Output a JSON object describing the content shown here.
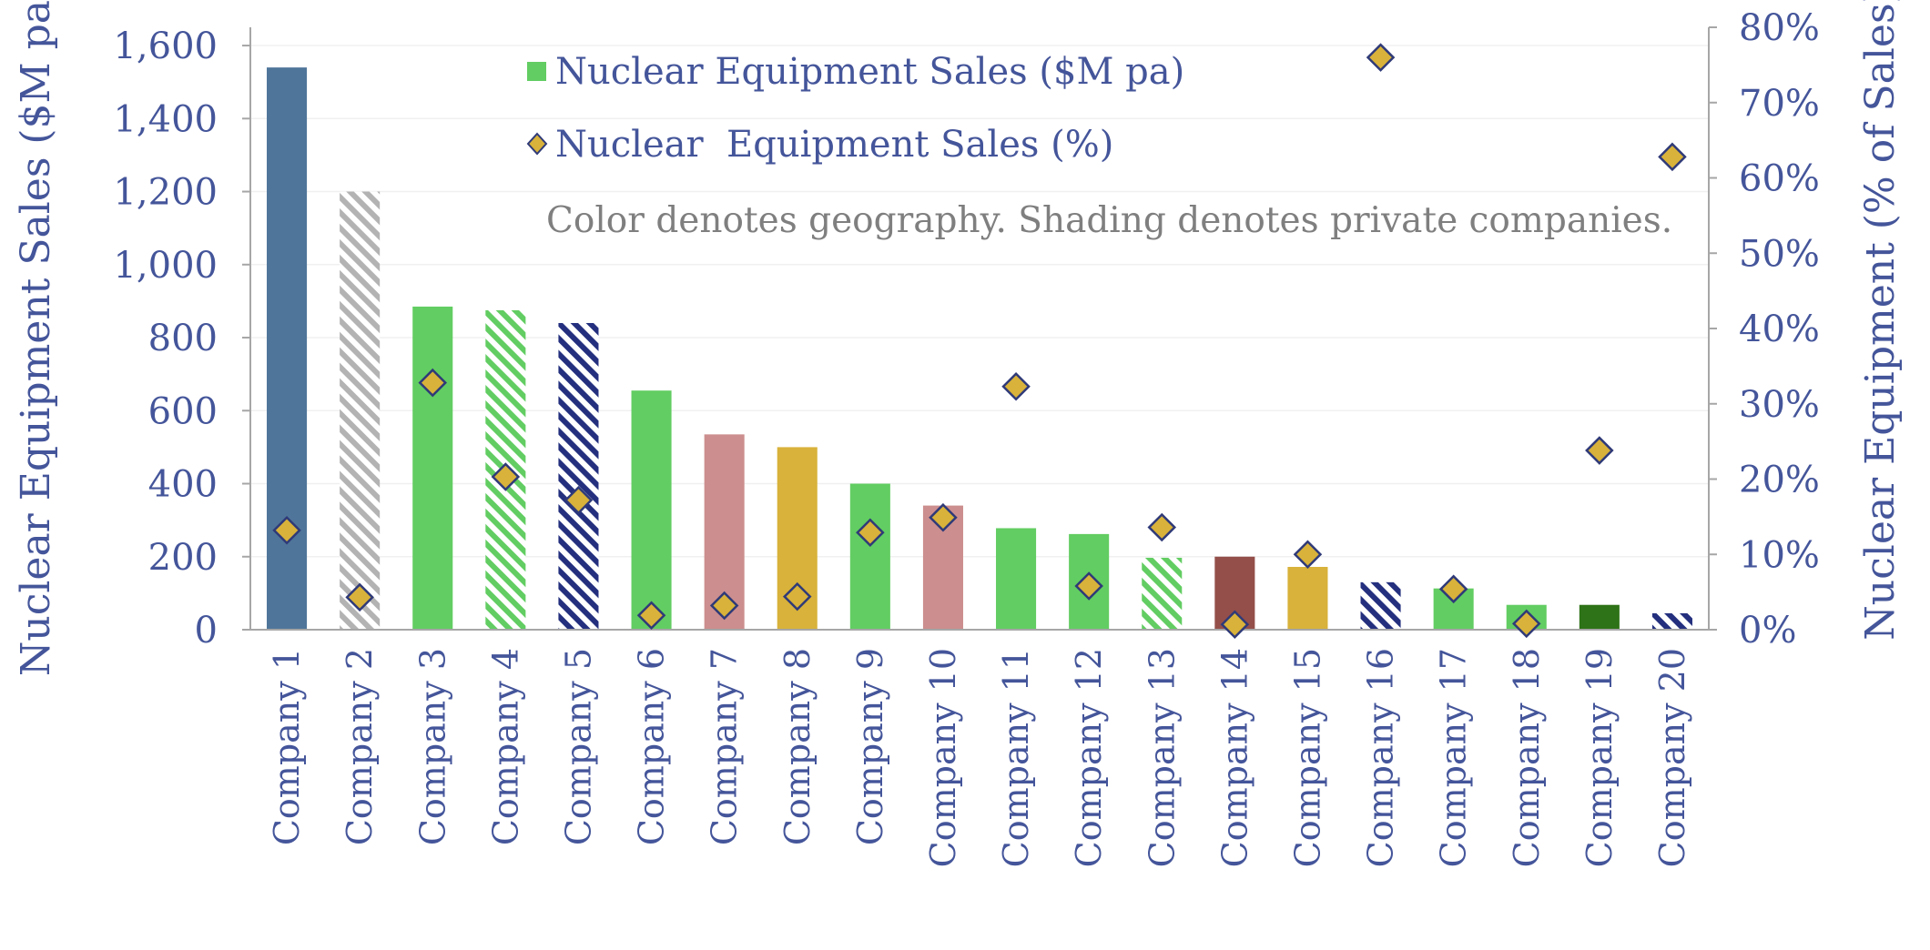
{
  "chart_data": {
    "type": "bar",
    "y_left": {
      "label": "Nuclear Equipment Sales ($M pa)",
      "range": [
        0,
        1650
      ],
      "ticks": [
        0,
        200,
        400,
        600,
        800,
        1000,
        1200,
        1400,
        1600
      ],
      "tick_labels": [
        "0",
        "200",
        "400",
        "600",
        "800",
        "1,000",
        "1,200",
        "1,400",
        "1,600"
      ]
    },
    "y_right": {
      "label": "Nuclear Equipment (% of Sales)",
      "range": [
        0,
        80
      ],
      "ticks": [
        0,
        10,
        20,
        30,
        40,
        50,
        60,
        70,
        80
      ],
      "tick_labels": [
        "0%",
        "10%",
        "20%",
        "30%",
        "40%",
        "50%",
        "60%",
        "70%",
        "80%"
      ]
    },
    "grid": true,
    "legend": {
      "placement": "top-center",
      "entries": [
        {
          "label": "Nuclear Equipment Sales ($M pa)",
          "marker": "square",
          "color": "#62cd62"
        },
        {
          "label": "Nuclear  Equipment Sales (%)",
          "marker": "diamond",
          "color": "#d8b23a"
        }
      ]
    },
    "annotation": "Color denotes geography. Shading denotes private companies.",
    "categories": [
      "Company 1",
      "Company 2",
      "Company 3",
      "Company 4",
      "Company 5",
      "Company 6",
      "Company 7",
      "Company 8",
      "Company 9",
      "Company 10",
      "Company 11",
      "Company 12",
      "Company 13",
      "Company 14",
      "Company 15",
      "Company 16",
      "Company 17",
      "Company 18",
      "Company 19",
      "Company 20"
    ],
    "series": [
      {
        "name": "Nuclear Equipment Sales ($M pa)",
        "axis": "left",
        "kind": "bar",
        "values": [
          1540,
          1200,
          885,
          875,
          840,
          655,
          535,
          500,
          400,
          340,
          278,
          262,
          197,
          200,
          172,
          130,
          113,
          68,
          68,
          45
        ]
      },
      {
        "name": "Nuclear  Equipment Sales (%)",
        "axis": "right",
        "kind": "diamond",
        "values": [
          13.2,
          4.3,
          32.8,
          20.3,
          17.2,
          1.9,
          3.2,
          4.4,
          12.9,
          14.9,
          32.3,
          5.8,
          13.6,
          0.7,
          10.0,
          76.0,
          5.4,
          0.8,
          23.8,
          62.8
        ]
      }
    ],
    "bar_styles": [
      {
        "color": "#4f759a",
        "hatched": false
      },
      {
        "color": "#b3b3b3",
        "hatched": true
      },
      {
        "color": "#62cd62",
        "hatched": false
      },
      {
        "color": "#62cd62",
        "hatched": true
      },
      {
        "color": "#24307e",
        "hatched": true
      },
      {
        "color": "#62cd62",
        "hatched": false
      },
      {
        "color": "#cc8e8e",
        "hatched": false
      },
      {
        "color": "#d8b23a",
        "hatched": false
      },
      {
        "color": "#62cd62",
        "hatched": false
      },
      {
        "color": "#cc8e8e",
        "hatched": false
      },
      {
        "color": "#62cd62",
        "hatched": false
      },
      {
        "color": "#62cd62",
        "hatched": false
      },
      {
        "color": "#62cd62",
        "hatched": true
      },
      {
        "color": "#944f4a",
        "hatched": false
      },
      {
        "color": "#d8b23a",
        "hatched": false
      },
      {
        "color": "#24307e",
        "hatched": true
      },
      {
        "color": "#62cd62",
        "hatched": false
      },
      {
        "color": "#62cd62",
        "hatched": false
      },
      {
        "color": "#2e7317",
        "hatched": false
      },
      {
        "color": "#24307e",
        "hatched": true
      }
    ],
    "colors": {
      "text": "#44559a",
      "note": "#7f7f7f",
      "axis": "#a6a6a6",
      "grid": "#f0f0f0",
      "diamond_fill": "#d8b23a",
      "diamond_stroke": "#2f3a78"
    }
  }
}
